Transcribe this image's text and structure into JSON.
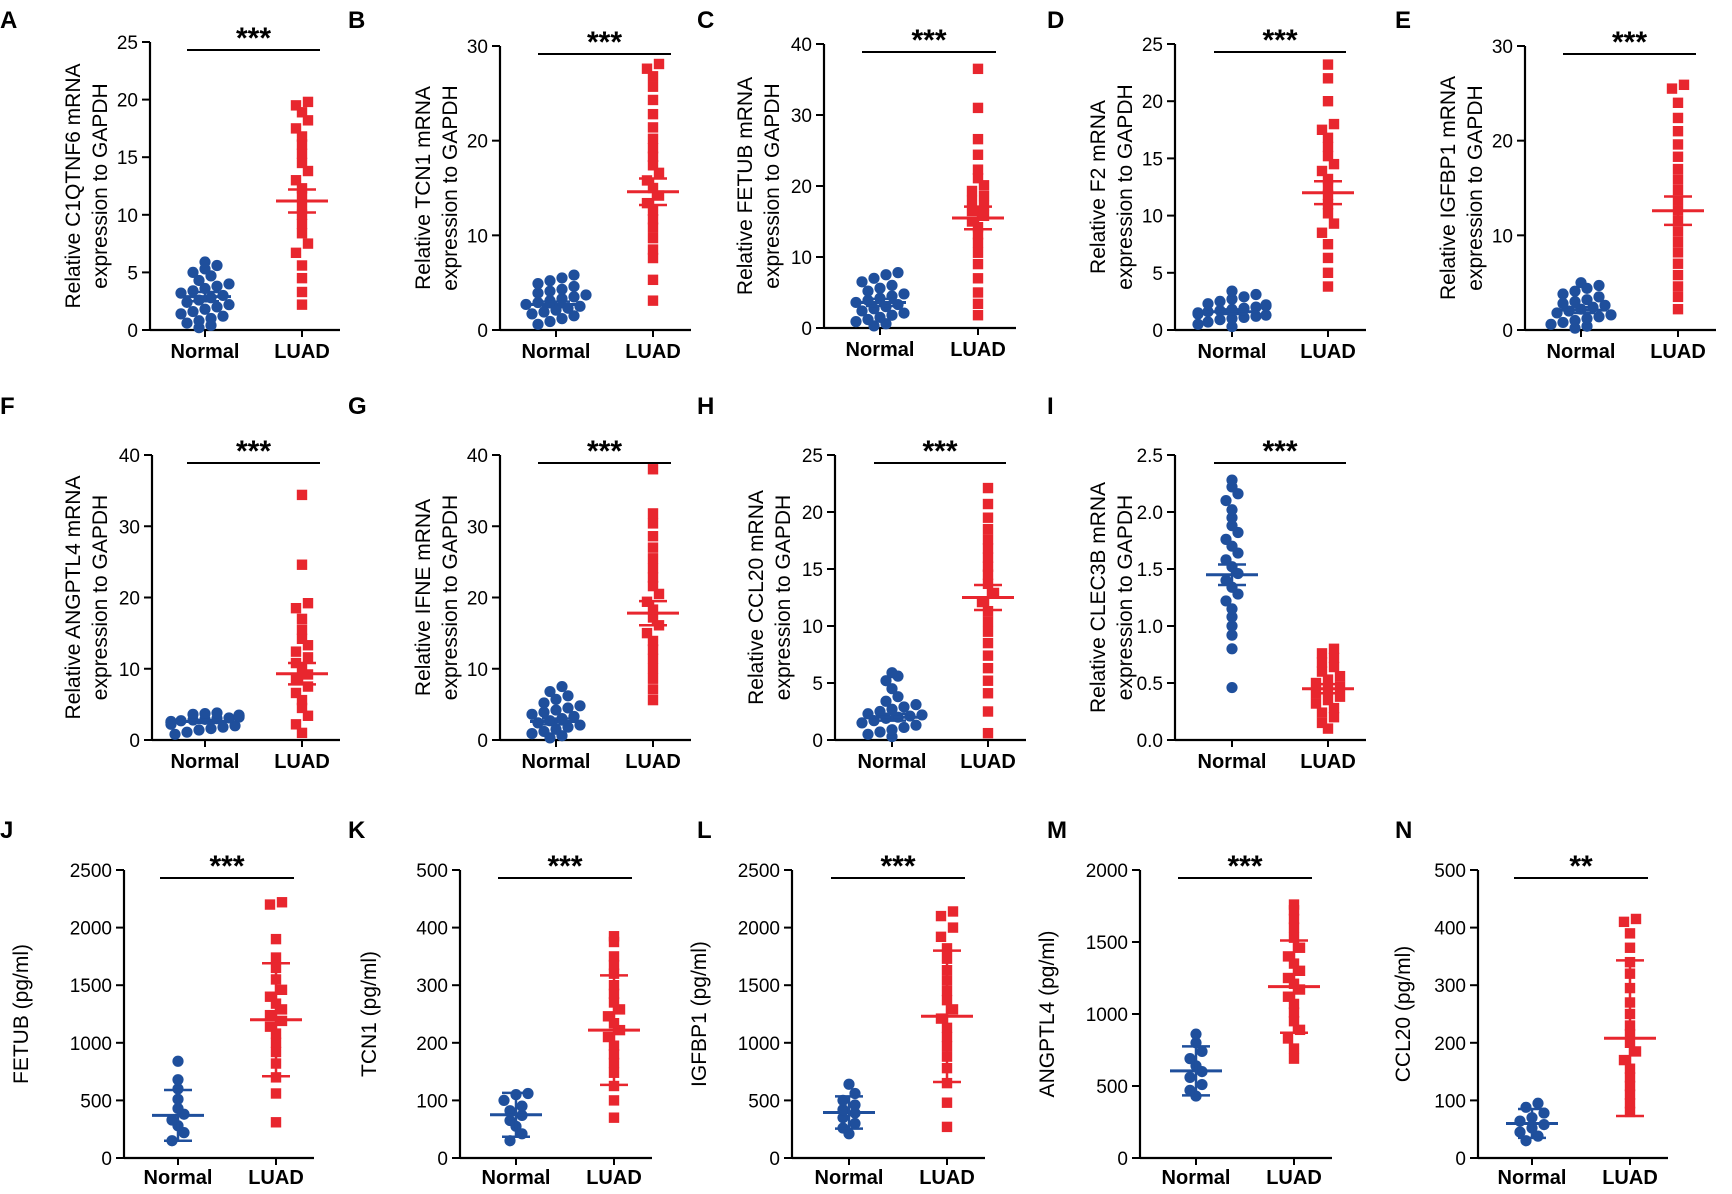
{
  "figure": {
    "description": "Multi-panel dot plots comparing Normal vs LUAD expression",
    "colors": {
      "normal": "#1f4f9c",
      "luad": "#e8262e",
      "axis": "#000000"
    }
  },
  "chart_data": [
    {
      "panel": "A",
      "type": "scatter",
      "ylabel": [
        "Relative C1QTNF6 mRNA",
        "expression to GAPDH"
      ],
      "categories": [
        "Normal",
        "LUAD"
      ],
      "ylim": [
        0,
        25
      ],
      "yticks": [
        0,
        5,
        10,
        15,
        20,
        25
      ],
      "significance": "***",
      "series": [
        {
          "name": "Normal",
          "mean": 2.9,
          "err": 0.4,
          "values": [
            0.2,
            0.4,
            0.6,
            0.8,
            1.0,
            1.2,
            1.4,
            1.6,
            1.8,
            2.0,
            2.2,
            2.4,
            2.6,
            2.8,
            3.0,
            3.2,
            3.4,
            3.6,
            3.8,
            4.0,
            4.3,
            4.7,
            5.0,
            5.3,
            5.6,
            5.9
          ]
        },
        {
          "name": "LUAD",
          "mean": 11.2,
          "err": 1.0,
          "values": [
            2.2,
            3.3,
            4.5,
            5.6,
            6.7,
            7.5,
            8.4,
            9.2,
            10.0,
            10.8,
            11.6,
            12.3,
            13.0,
            13.8,
            14.5,
            15.3,
            16.1,
            16.8,
            17.5,
            18.2,
            18.9,
            19.5,
            19.8
          ]
        }
      ]
    },
    {
      "panel": "B",
      "type": "scatter",
      "ylabel": [
        "Relative TCN1 mRNA",
        "expression to GAPDH"
      ],
      "categories": [
        "Normal",
        "LUAD"
      ],
      "ylim": [
        0,
        30
      ],
      "yticks": [
        0,
        10,
        20,
        30
      ],
      "significance": "***",
      "series": [
        {
          "name": "Normal",
          "mean": 2.7,
          "err": 0.3,
          "values": [
            0.6,
            0.9,
            1.2,
            1.5,
            1.7,
            1.9,
            2.1,
            2.3,
            2.5,
            2.7,
            2.9,
            3.1,
            3.3,
            3.5,
            3.7,
            3.9,
            4.1,
            4.3,
            4.6,
            4.9,
            5.2,
            5.5,
            5.8
          ]
        },
        {
          "name": "LUAD",
          "mean": 14.6,
          "err": 1.4,
          "values": [
            3.1,
            5.3,
            7.6,
            8.5,
            9.7,
            10.8,
            11.7,
            12.6,
            13.4,
            14.2,
            15.0,
            15.8,
            16.6,
            17.4,
            18.3,
            19.2,
            20.2,
            21.4,
            22.8,
            24.3,
            25.7,
            26.8,
            27.6,
            28.1
          ]
        }
      ]
    },
    {
      "panel": "C",
      "type": "scatter",
      "ylabel": [
        "Relative FETUB mRNA",
        "expression to GAPDH"
      ],
      "categories": [
        "Normal",
        "LUAD"
      ],
      "ylim": [
        0,
        40
      ],
      "yticks": [
        0,
        10,
        20,
        30,
        40
      ],
      "significance": "***",
      "series": [
        {
          "name": "Normal",
          "mean": 3.6,
          "err": 0.5,
          "values": [
            0.3,
            0.6,
            0.9,
            1.2,
            1.5,
            1.8,
            2.1,
            2.4,
            2.7,
            3.0,
            3.3,
            3.6,
            3.9,
            4.2,
            4.5,
            4.8,
            5.2,
            5.6,
            6.0,
            6.5,
            7.0,
            7.5,
            7.8
          ]
        },
        {
          "name": "LUAD",
          "mean": 15.5,
          "err": 1.6,
          "values": [
            1.8,
            3.4,
            5.0,
            7.0,
            9.0,
            10.6,
            12.0,
            13.2,
            14.2,
            15.0,
            15.8,
            16.5,
            17.2,
            17.9,
            18.6,
            19.3,
            20.1,
            21.1,
            22.3,
            24.4,
            26.6,
            31.0,
            36.5
          ]
        }
      ]
    },
    {
      "panel": "D",
      "type": "scatter",
      "ylabel": [
        "Relative F2 mRNA",
        "expression to GAPDH"
      ],
      "categories": [
        "Normal",
        "LUAD"
      ],
      "ylim": [
        0,
        25
      ],
      "yticks": [
        0,
        5,
        10,
        15,
        20,
        25
      ],
      "significance": "***",
      "series": [
        {
          "name": "Normal",
          "mean": 1.6,
          "err": 0.2,
          "values": [
            0.3,
            0.5,
            0.7,
            0.9,
            1.0,
            1.1,
            1.2,
            1.3,
            1.4,
            1.5,
            1.6,
            1.7,
            1.8,
            1.9,
            2.0,
            2.1,
            2.2,
            2.3,
            2.5,
            2.7,
            2.9,
            3.1,
            3.4
          ]
        },
        {
          "name": "LUAD",
          "mean": 12.0,
          "err": 1.0,
          "values": [
            3.8,
            5.0,
            6.3,
            7.5,
            8.5,
            9.3,
            10.2,
            11.0,
            11.8,
            12.5,
            13.2,
            13.9,
            14.5,
            15.2,
            16.0,
            16.8,
            17.5,
            18.0,
            20.0,
            22.0,
            23.2
          ]
        }
      ]
    },
    {
      "panel": "E",
      "type": "scatter",
      "ylabel": [
        "Relative IGFBP1 mRNA",
        "expression to GAPDH"
      ],
      "categories": [
        "Normal",
        "LUAD"
      ],
      "ylim": [
        0,
        30
      ],
      "yticks": [
        0,
        10,
        20,
        30
      ],
      "significance": "***",
      "series": [
        {
          "name": "Normal",
          "mean": 2.1,
          "err": 0.3,
          "values": [
            0.2,
            0.4,
            0.6,
            0.8,
            1.0,
            1.2,
            1.4,
            1.6,
            1.8,
            2.0,
            2.2,
            2.4,
            2.6,
            2.8,
            3.0,
            3.2,
            3.5,
            3.8,
            4.1,
            4.4,
            4.7,
            5.0
          ]
        },
        {
          "name": "LUAD",
          "mean": 12.6,
          "err": 1.5,
          "values": [
            2.2,
            3.5,
            4.6,
            5.8,
            7.0,
            8.2,
            9.3,
            10.4,
            11.5,
            12.6,
            13.7,
            14.8,
            15.9,
            17.0,
            18.3,
            19.6,
            21.0,
            22.4,
            24.0,
            25.5,
            25.9
          ]
        }
      ]
    },
    {
      "panel": "F",
      "type": "scatter",
      "ylabel": [
        "Relative ANGPTL4 mRNA",
        "expression to GAPDH"
      ],
      "categories": [
        "Normal",
        "LUAD"
      ],
      "ylim": [
        0,
        40
      ],
      "yticks": [
        0,
        10,
        20,
        30,
        40
      ],
      "significance": "***",
      "series": [
        {
          "name": "Normal",
          "mean": 2.6,
          "err": 0.2,
          "values": [
            0.8,
            1.1,
            1.4,
            1.6,
            1.8,
            2.0,
            2.2,
            2.4,
            2.5,
            2.6,
            2.7,
            2.8,
            2.9,
            3.0,
            3.1,
            3.2,
            3.3,
            3.4,
            3.5,
            3.6,
            3.7,
            3.8
          ]
        },
        {
          "name": "LUAD",
          "mean": 9.3,
          "err": 1.5,
          "values": [
            1.0,
            2.2,
            3.4,
            4.5,
            5.6,
            6.6,
            7.5,
            8.4,
            9.2,
            10.0,
            10.8,
            11.6,
            12.4,
            13.3,
            14.2,
            15.5,
            17.0,
            18.5,
            19.2,
            24.6,
            34.4
          ]
        }
      ]
    },
    {
      "panel": "G",
      "type": "scatter",
      "ylabel": [
        "Relative IFNE mRNA",
        "expression to GAPDH"
      ],
      "categories": [
        "Normal",
        "LUAD"
      ],
      "ylim": [
        0,
        40
      ],
      "yticks": [
        0,
        10,
        20,
        30,
        40
      ],
      "significance": "***",
      "series": [
        {
          "name": "Normal",
          "mean": 2.6,
          "err": 0.4,
          "values": [
            0.3,
            0.6,
            0.9,
            1.2,
            1.5,
            1.8,
            2.1,
            2.4,
            2.7,
            3.0,
            3.3,
            3.6,
            3.9,
            4.2,
            4.5,
            4.8,
            5.2,
            5.7,
            6.2,
            6.8,
            7.5
          ]
        },
        {
          "name": "LUAD",
          "mean": 17.8,
          "err": 1.7,
          "values": [
            5.6,
            7.1,
            8.6,
            10.0,
            11.4,
            12.7,
            13.9,
            15.0,
            16.1,
            17.2,
            18.3,
            19.4,
            20.5,
            21.6,
            22.8,
            24.1,
            25.5,
            27.0,
            28.6,
            30.4,
            31.8,
            38.0
          ]
        }
      ]
    },
    {
      "panel": "H",
      "type": "scatter",
      "ylabel": [
        "Relative CCL20 mRNA",
        "expression to GAPDH"
      ],
      "categories": [
        "Normal",
        "LUAD"
      ],
      "ylim": [
        0,
        25
      ],
      "yticks": [
        0,
        5,
        10,
        15,
        20,
        25
      ],
      "significance": "***",
      "series": [
        {
          "name": "Normal",
          "mean": 2.0,
          "err": 0.3,
          "values": [
            0.3,
            0.5,
            0.7,
            0.9,
            1.1,
            1.3,
            1.5,
            1.7,
            1.9,
            2.0,
            2.1,
            2.2,
            2.3,
            2.5,
            2.7,
            2.9,
            3.1,
            3.4,
            3.8,
            4.5,
            5.2,
            5.6,
            5.9
          ]
        },
        {
          "name": "LUAD",
          "mean": 12.5,
          "err": 1.1,
          "values": [
            0.6,
            2.5,
            4.1,
            5.2,
            6.3,
            7.4,
            8.5,
            9.5,
            10.4,
            11.3,
            12.1,
            12.9,
            13.7,
            14.5,
            15.2,
            16.0,
            16.8,
            17.6,
            18.5,
            19.5,
            20.7,
            22.1
          ]
        }
      ]
    },
    {
      "panel": "I",
      "type": "scatter",
      "ylabel": [
        "Relative CLEC3B mRNA",
        "expression to GAPDH"
      ],
      "categories": [
        "Normal",
        "LUAD"
      ],
      "ylim": [
        0,
        2.5
      ],
      "yticks": [
        0.0,
        0.5,
        1.0,
        1.5,
        2.0,
        2.5
      ],
      "tickFormat": 1,
      "significance": "***",
      "series": [
        {
          "name": "Normal",
          "mean": 1.45,
          "err": 0.09,
          "values": [
            0.46,
            0.8,
            0.92,
            1.0,
            1.08,
            1.15,
            1.22,
            1.28,
            1.34,
            1.4,
            1.46,
            1.52,
            1.58,
            1.64,
            1.7,
            1.76,
            1.82,
            1.88,
            1.95,
            2.02,
            2.1,
            2.16,
            2.22,
            2.28
          ]
        },
        {
          "name": "LUAD",
          "mean": 0.45,
          "err": 0.04,
          "values": [
            0.1,
            0.15,
            0.2,
            0.24,
            0.28,
            0.32,
            0.35,
            0.38,
            0.41,
            0.44,
            0.47,
            0.5,
            0.53,
            0.56,
            0.6,
            0.64,
            0.68,
            0.72,
            0.76,
            0.8
          ]
        }
      ]
    },
    {
      "panel": "J",
      "type": "scatter",
      "ylabel": [
        "FETUB (pg/ml)"
      ],
      "categories": [
        "Normal",
        "LUAD"
      ],
      "ylim": [
        0,
        2500
      ],
      "yticks": [
        0,
        500,
        1000,
        1500,
        2000,
        2500
      ],
      "significance": "***",
      "series": [
        {
          "name": "Normal",
          "mean": 370,
          "err": 220,
          "values": [
            150,
            220,
            280,
            330,
            380,
            430,
            510,
            600,
            680,
            840
          ]
        },
        {
          "name": "LUAD",
          "mean": 1200,
          "err": 490,
          "values": [
            310,
            560,
            700,
            820,
            920,
            1000,
            1080,
            1140,
            1190,
            1240,
            1290,
            1340,
            1400,
            1460,
            1550,
            1650,
            1740,
            1900,
            2200,
            2220
          ]
        }
      ]
    },
    {
      "panel": "K",
      "type": "scatter",
      "ylabel": [
        "TCN1 (pg/ml)"
      ],
      "categories": [
        "Normal",
        "LUAD"
      ],
      "ylim": [
        0,
        500
      ],
      "yticks": [
        0,
        100,
        200,
        300,
        400,
        500
      ],
      "significance": "***",
      "series": [
        {
          "name": "Normal",
          "mean": 75,
          "err": 38,
          "values": [
            30,
            42,
            55,
            65,
            74,
            82,
            90,
            100,
            110,
            112
          ]
        },
        {
          "name": "LUAD",
          "mean": 222,
          "err": 95,
          "values": [
            70,
            100,
            125,
            148,
            165,
            180,
            195,
            210,
            222,
            234,
            246,
            258,
            270,
            285,
            300,
            320,
            335,
            350,
            375,
            385
          ]
        }
      ]
    },
    {
      "panel": "L",
      "type": "scatter",
      "ylabel": [
        "IGFBP1 (pg/ml)"
      ],
      "categories": [
        "Normal",
        "LUAD"
      ],
      "ylim": [
        0,
        2500
      ],
      "yticks": [
        0,
        500,
        1000,
        1500,
        2000,
        2500
      ],
      "significance": "***",
      "series": [
        {
          "name": "Normal",
          "mean": 395,
          "err": 140,
          "values": [
            210,
            260,
            300,
            350,
            390,
            420,
            460,
            500,
            560,
            640
          ]
        },
        {
          "name": "LUAD",
          "mean": 1230,
          "err": 570,
          "values": [
            270,
            480,
            650,
            780,
            880,
            970,
            1050,
            1130,
            1210,
            1290,
            1370,
            1450,
            1540,
            1630,
            1730,
            1820,
            1920,
            2000,
            2100,
            2140
          ]
        }
      ]
    },
    {
      "panel": "M",
      "type": "scatter",
      "ylabel": [
        "ANGPTL4 (pg/ml)"
      ],
      "categories": [
        "Normal",
        "LUAD"
      ],
      "ylim": [
        0,
        2000
      ],
      "yticks": [
        0,
        500,
        1000,
        1500,
        2000
      ],
      "significance": "***",
      "series": [
        {
          "name": "Normal",
          "mean": 605,
          "err": 170,
          "values": [
            430,
            470,
            510,
            560,
            600,
            640,
            690,
            740,
            800,
            860
          ]
        },
        {
          "name": "LUAD",
          "mean": 1190,
          "err": 320,
          "values": [
            690,
            760,
            830,
            890,
            950,
            1010,
            1070,
            1120,
            1170,
            1210,
            1250,
            1300,
            1350,
            1400,
            1460,
            1530,
            1600,
            1660,
            1720,
            1760
          ]
        }
      ]
    },
    {
      "panel": "N",
      "type": "scatter",
      "ylabel": [
        "CCL20 (pg/ml)"
      ],
      "categories": [
        "Normal",
        "LUAD"
      ],
      "ylim": [
        0,
        500
      ],
      "yticks": [
        0,
        100,
        200,
        300,
        400,
        500
      ],
      "significance": "**",
      "series": [
        {
          "name": "Normal",
          "mean": 60,
          "err": 25,
          "values": [
            30,
            38,
            45,
            52,
            58,
            64,
            70,
            78,
            88,
            95
          ]
        },
        {
          "name": "LUAD",
          "mean": 208,
          "err": 135,
          "values": [
            80,
            95,
            110,
            125,
            140,
            155,
            170,
            185,
            200,
            215,
            230,
            250,
            270,
            295,
            320,
            340,
            365,
            390,
            410,
            415
          ]
        }
      ]
    }
  ]
}
